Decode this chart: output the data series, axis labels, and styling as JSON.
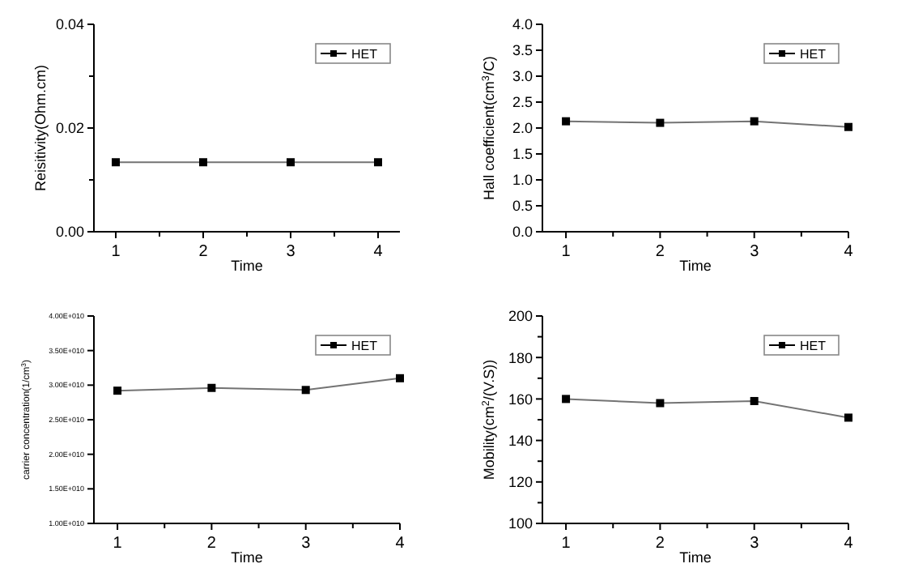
{
  "chart_data": [
    {
      "type": "line",
      "xlabel": "Time",
      "ylabel": "Reisitivity(Ohm.cm)",
      "x": [
        1,
        2,
        3,
        4
      ],
      "series": [
        {
          "name": "HET",
          "color": "#000000",
          "values": [
            0.0134,
            0.0134,
            0.0134,
            0.0134
          ]
        }
      ],
      "xlim": [
        0.75,
        4.25
      ],
      "xticks": [
        1,
        {
          "value": 1.5,
          "label": null
        },
        2,
        {
          "value": 2.5,
          "label": null
        },
        3,
        {
          "value": 3.5,
          "label": null
        },
        4
      ],
      "ylim": [
        0,
        0.04
      ],
      "yticks": [
        {
          "value": 0,
          "label": "0.00"
        },
        {
          "value": 0.01,
          "label": null
        },
        {
          "value": 0.02,
          "label": "0.02"
        },
        {
          "value": 0.03,
          "label": null
        },
        {
          "value": 0.04,
          "label": "0.04"
        }
      ],
      "legend": "top right",
      "marker": "square",
      "grid": false
    },
    {
      "type": "line",
      "xlabel": "Time",
      "ylabel": "Hall coefficient(cm$^{3}$/C)",
      "x": [
        1,
        2,
        3,
        4
      ],
      "series": [
        {
          "name": "HET",
          "color": "#000000",
          "values": [
            2.13,
            2.1,
            2.13,
            2.02
          ]
        }
      ],
      "xlim": [
        0.75,
        4
      ],
      "xticks": [
        1,
        {
          "value": 1.5,
          "label": null
        },
        2,
        {
          "value": 2.5,
          "label": null
        },
        3,
        {
          "value": 3.5,
          "label": null
        },
        4
      ],
      "ylim": [
        0,
        4
      ],
      "yticks": [
        {
          "value": 0,
          "label": "0.0"
        },
        {
          "value": 0.5,
          "label": "0.5"
        },
        {
          "value": 1,
          "label": "1.0"
        },
        {
          "value": 1.5,
          "label": "1.5"
        },
        {
          "value": 2,
          "label": "2.0"
        },
        {
          "value": 2.5,
          "label": "2.5"
        },
        {
          "value": 3,
          "label": "3.0"
        },
        {
          "value": 3.5,
          "label": "3.5"
        },
        {
          "value": 4,
          "label": "4.0"
        }
      ],
      "legend": "top right",
      "marker": "square",
      "grid": false
    },
    {
      "type": "line",
      "xlabel": "Time",
      "ylabel": "carrier concentration(1/cm$^{3}$)",
      "x": [
        1,
        2,
        3,
        4
      ],
      "series": [
        {
          "name": "HET",
          "color": "#000000",
          "values": [
            29200000000,
            29600000000,
            29300000000,
            31000000000
          ]
        }
      ],
      "xlim": [
        0.75,
        4
      ],
      "xticks": [
        1,
        {
          "value": 1.5,
          "label": null
        },
        2,
        {
          "value": 2.5,
          "label": null
        },
        3,
        {
          "value": 3.5,
          "label": null
        },
        4
      ],
      "ylim": [
        10000000000,
        40000000000
      ],
      "yticks": [
        {
          "value": 10000000000,
          "label": "1.00E+010"
        },
        {
          "value": 15000000000,
          "label": "1.50E+010"
        },
        {
          "value": 20000000000,
          "label": "2.00E+010"
        },
        {
          "value": 25000000000,
          "label": "2.50E+010"
        },
        {
          "value": 30000000000,
          "label": "3.00E+010"
        },
        {
          "value": 35000000000,
          "label": "3.50E+010"
        },
        {
          "value": 40000000000,
          "label": "4.00E+010"
        }
      ],
      "legend": "top right",
      "marker": "square",
      "grid": false
    },
    {
      "type": "line",
      "xlabel": "Time",
      "ylabel": "Mobility(cm$^{2}$/(V.S))",
      "x": [
        1,
        2,
        3,
        4
      ],
      "series": [
        {
          "name": "HET",
          "color": "#000000",
          "values": [
            160,
            158,
            159,
            151
          ]
        }
      ],
      "xlim": [
        0.75,
        4
      ],
      "xticks": [
        1,
        {
          "value": 1.5,
          "label": null
        },
        2,
        {
          "value": 2.5,
          "label": null
        },
        3,
        {
          "value": 3.5,
          "label": null
        },
        4
      ],
      "ylim": [
        100,
        200
      ],
      "yticks": [
        100,
        {
          "value": 110,
          "label": null
        },
        120,
        {
          "value": 130,
          "label": null
        },
        140,
        {
          "value": 150,
          "label": null
        },
        160,
        {
          "value": 170,
          "label": null
        },
        180,
        {
          "value": 190,
          "label": null
        },
        200
      ],
      "legend": "top right",
      "marker": "square",
      "grid": false
    }
  ]
}
